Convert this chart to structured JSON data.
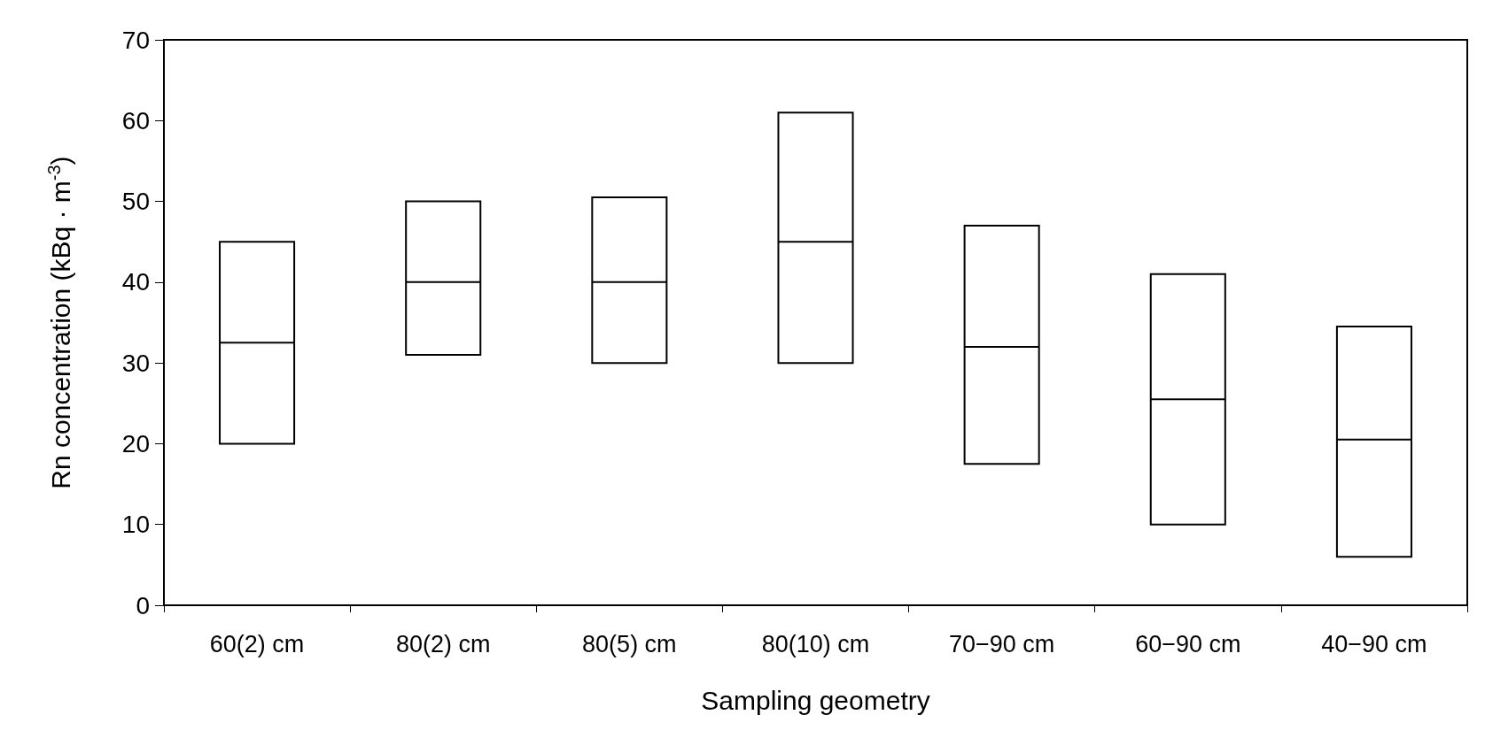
{
  "chart_data": {
    "type": "box",
    "xlabel": "Sampling geometry",
    "ylabel": "Rn concentration (kBq · m$^{-3}$)",
    "categories": [
      "60(2) cm",
      "80(2) cm",
      "80(5) cm",
      "80(10) cm",
      "70−90 cm",
      "60−90 cm",
      "40−90 cm"
    ],
    "boxes": [
      {
        "low": 20,
        "q1": 20,
        "median": 32.5,
        "q3": 45,
        "high": 45
      },
      {
        "low": 31,
        "q1": 31,
        "median": 40,
        "q3": 50,
        "high": 50
      },
      {
        "low": 30,
        "q1": 30,
        "median": 40,
        "q3": 50.5,
        "high": 50.5
      },
      {
        "low": 30,
        "q1": 30,
        "median": 45,
        "q3": 61,
        "high": 61
      },
      {
        "low": 17.5,
        "q1": 17.5,
        "median": 32,
        "q3": 47,
        "high": 47
      },
      {
        "low": 10,
        "q1": 10,
        "median": 25.5,
        "q3": 41,
        "high": 41
      },
      {
        "low": 6,
        "q1": 6,
        "median": 20.5,
        "q3": 34.5,
        "high": 34.5
      }
    ],
    "ylim": [
      0,
      70
    ],
    "yticks": [
      0,
      10,
      20,
      30,
      40,
      50,
      60,
      70
    ],
    "grid": false
  }
}
